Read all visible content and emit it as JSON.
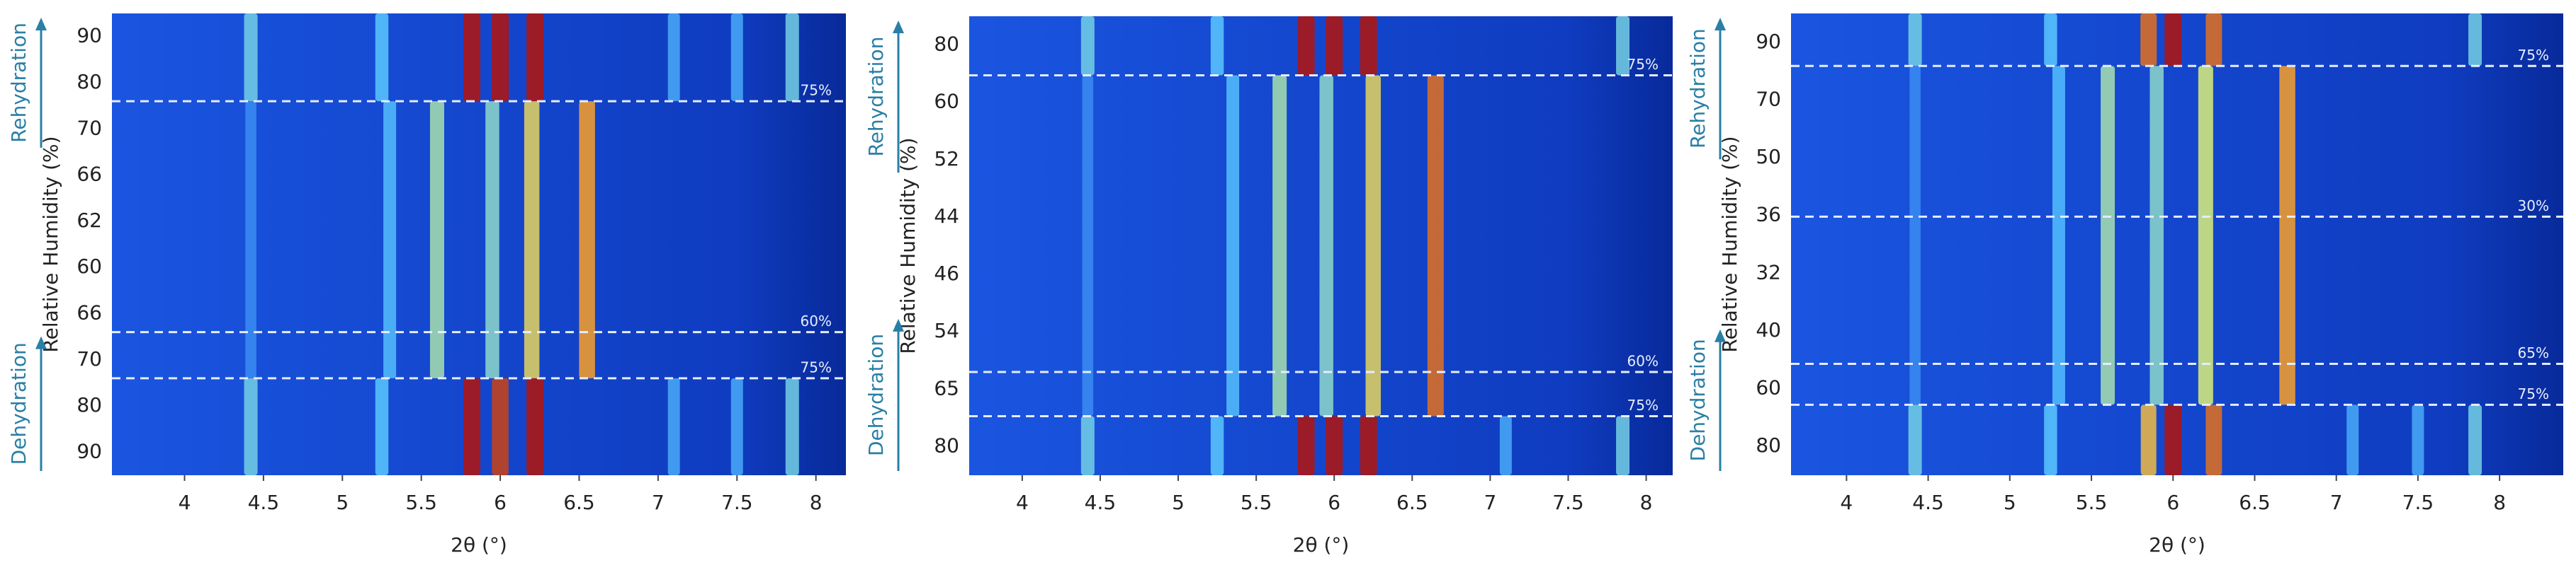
{
  "chart_data": [
    {
      "type": "heatmap",
      "xlabel": "2θ (°)",
      "ylabel": "Relative Humidity (%)",
      "xlim": [
        3.54,
        8.19
      ],
      "xticks": [
        4,
        4.5,
        5,
        5.5,
        6,
        6.5,
        7,
        7.5,
        8
      ],
      "categories": [
        "90",
        "80",
        "70",
        "66",
        "62",
        "60",
        "66",
        "70",
        "80",
        "90"
      ],
      "ylim": [
        0,
        10
      ],
      "lines": [
        {
          "y": 1.9,
          "label": "75%"
        },
        {
          "y": 6.9,
          "label": "60%"
        },
        {
          "y": 7.9,
          "label": "75%"
        }
      ],
      "side_labels": [
        {
          "text": "Rehydration",
          "y": [
            0,
            3
          ]
        },
        {
          "text": "Dehydration",
          "y": [
            6.9,
            10
          ]
        }
      ],
      "segments": [
        [
          4.42,
          0,
          1.9,
          0.5
        ],
        [
          5.25,
          0,
          1.9,
          0.45
        ],
        [
          5.82,
          0,
          1.9,
          1
        ],
        [
          6.0,
          0,
          1.9,
          1
        ],
        [
          6.22,
          0,
          1.9,
          1
        ],
        [
          7.1,
          0,
          1.9,
          0.3
        ],
        [
          7.5,
          0,
          1.9,
          0.3
        ],
        [
          7.85,
          0,
          1.9,
          0.5
        ],
        [
          4.42,
          7.9,
          10,
          0.5
        ],
        [
          5.25,
          7.9,
          10,
          0.45
        ],
        [
          5.82,
          7.9,
          10,
          1
        ],
        [
          6.0,
          7.9,
          10,
          0.95
        ],
        [
          6.22,
          7.9,
          10,
          1
        ],
        [
          7.1,
          7.9,
          10,
          0.3
        ],
        [
          7.5,
          7.9,
          10,
          0.3
        ],
        [
          7.85,
          7.9,
          10,
          0.5
        ],
        [
          4.42,
          1.9,
          7.9,
          0.15
        ],
        [
          5.3,
          1.9,
          7.9,
          0.4
        ],
        [
          5.6,
          1.9,
          7.9,
          0.6
        ],
        [
          5.95,
          1.9,
          7.9,
          0.55
        ],
        [
          6.2,
          1.9,
          7.9,
          0.75
        ],
        [
          6.55,
          1.9,
          7.9,
          0.85
        ]
      ]
    },
    {
      "type": "heatmap",
      "xlabel": "2θ (°)",
      "ylabel": "Relative Humidity (%)",
      "xlim": [
        3.66,
        8.17
      ],
      "xticks": [
        4,
        4.5,
        5,
        5.5,
        6,
        6.5,
        7,
        7.5,
        8
      ],
      "categories": [
        "80",
        "60",
        "52",
        "44",
        "46",
        "54",
        "65",
        "80"
      ],
      "ylim": [
        0,
        8
      ],
      "lines": [
        {
          "y": 1.03,
          "label": "75%"
        },
        {
          "y": 6.2,
          "label": "60%"
        },
        {
          "y": 6.97,
          "label": "75%"
        }
      ],
      "side_labels": [
        {
          "text": "Rehydration",
          "y": [
            0,
            2.8
          ]
        },
        {
          "text": "Dehydration",
          "y": [
            5.2,
            8
          ]
        }
      ],
      "segments": [
        [
          4.42,
          0,
          1.03,
          0.5
        ],
        [
          5.25,
          0,
          1.03,
          0.45
        ],
        [
          5.82,
          0,
          1.03,
          1
        ],
        [
          6.0,
          0,
          1.03,
          1
        ],
        [
          6.22,
          0,
          1.03,
          1
        ],
        [
          7.85,
          0,
          1.03,
          0.5
        ],
        [
          4.42,
          6.97,
          8,
          0.5
        ],
        [
          5.25,
          6.97,
          8,
          0.45
        ],
        [
          5.82,
          6.97,
          8,
          1
        ],
        [
          6.0,
          6.97,
          8,
          1
        ],
        [
          6.22,
          6.97,
          8,
          1
        ],
        [
          7.1,
          6.97,
          8,
          0.3
        ],
        [
          7.85,
          6.97,
          8,
          0.5
        ],
        [
          4.42,
          1.03,
          6.97,
          0.15
        ],
        [
          5.35,
          1.03,
          6.97,
          0.4
        ],
        [
          5.65,
          1.03,
          6.97,
          0.6
        ],
        [
          5.95,
          1.03,
          6.97,
          0.55
        ],
        [
          6.25,
          1.03,
          6.97,
          0.75
        ],
        [
          6.65,
          1.03,
          6.97,
          0.9
        ]
      ]
    },
    {
      "type": "heatmap",
      "xlabel": "2θ (°)",
      "ylabel": "Relative Humidity (%)",
      "xlim": [
        3.66,
        8.39
      ],
      "xticks": [
        4,
        4.5,
        5,
        5.5,
        6,
        6.5,
        7,
        7.5,
        8
      ],
      "categories": [
        "90",
        "70",
        "50",
        "36",
        "32",
        "40",
        "60",
        "80"
      ],
      "ylim": [
        0,
        8
      ],
      "lines": [
        {
          "y": 0.91,
          "label": "75%"
        },
        {
          "y": 3.52,
          "label": "30%"
        },
        {
          "y": 6.07,
          "label": "65%"
        },
        {
          "y": 6.78,
          "label": "75%"
        }
      ],
      "side_labels": [
        {
          "text": "Rehydration",
          "y": [
            0,
            2.6
          ]
        },
        {
          "text": "Dehydration",
          "y": [
            5.4,
            8
          ]
        }
      ],
      "segments": [
        [
          4.42,
          0,
          0.91,
          0.5
        ],
        [
          5.25,
          0,
          0.91,
          0.45
        ],
        [
          5.85,
          0,
          0.91,
          0.9
        ],
        [
          6.0,
          0,
          0.91,
          1
        ],
        [
          6.25,
          0,
          0.91,
          0.9
        ],
        [
          7.85,
          0,
          0.91,
          0.5
        ],
        [
          4.42,
          6.78,
          8,
          0.5
        ],
        [
          5.25,
          6.78,
          8,
          0.45
        ],
        [
          5.85,
          6.78,
          8,
          0.8
        ],
        [
          6.0,
          6.78,
          8,
          1
        ],
        [
          6.25,
          6.78,
          8,
          0.9
        ],
        [
          7.1,
          6.78,
          8,
          0.3
        ],
        [
          7.5,
          6.78,
          8,
          0.3
        ],
        [
          7.85,
          6.78,
          8,
          0.5
        ],
        [
          4.42,
          0.91,
          6.78,
          0.15
        ],
        [
          5.3,
          0.91,
          6.78,
          0.4
        ],
        [
          5.6,
          0.91,
          6.78,
          0.6
        ],
        [
          5.9,
          0.91,
          6.78,
          0.55
        ],
        [
          6.2,
          0.91,
          6.78,
          0.7
        ],
        [
          6.7,
          0.91,
          6.78,
          0.85
        ]
      ]
    }
  ]
}
